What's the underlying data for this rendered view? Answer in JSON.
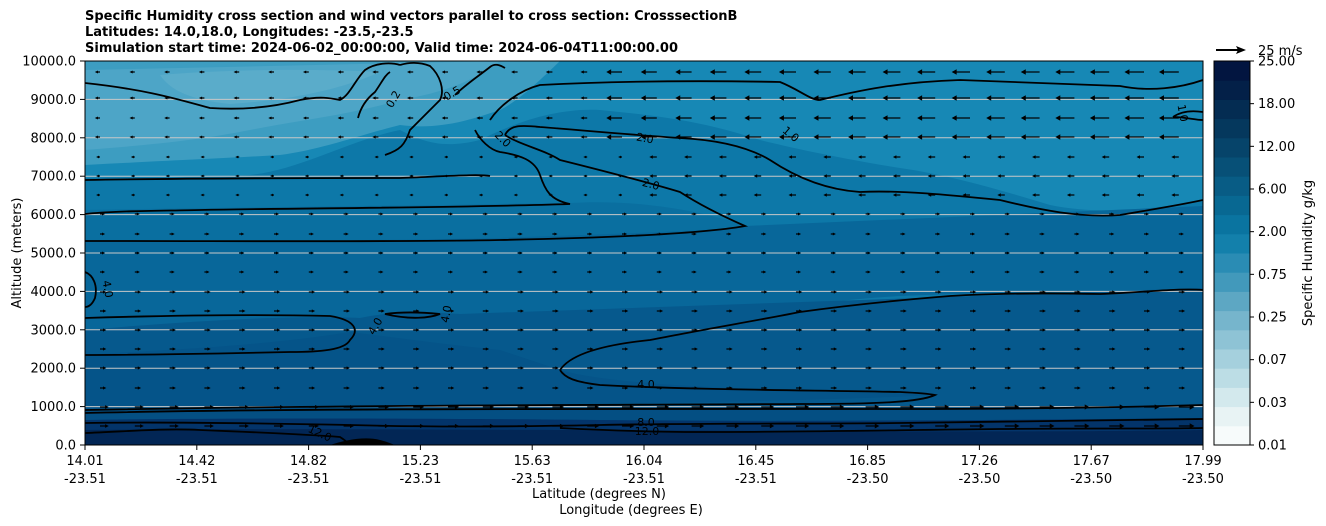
{
  "chart_data": {
    "type": "heatmap",
    "title_lines": [
      "Specific Humidity cross section and wind vectors parallel to cross section: CrosssectionB",
      "Latitudes: 14.0,18.0, Longitudes: -23.5,-23.5",
      "Simulation start time: 2024-06-02_00:00:00, Valid time: 2024-06-04T11:00:00.00"
    ],
    "ylabel": "Altitude (meters)",
    "xlabel_lat": "Latitude (degrees N)",
    "xlabel_lon": "Longitude (degrees E)",
    "ylim": [
      0,
      10000
    ],
    "y_ticks": [
      "0.0",
      "1000.0",
      "2000.0",
      "3000.0",
      "4000.0",
      "5000.0",
      "6000.0",
      "7000.0",
      "8000.0",
      "9000.0",
      "10000.0"
    ],
    "x_ticks_lat": [
      "14.01",
      "14.42",
      "14.82",
      "15.23",
      "15.63",
      "16.04",
      "16.45",
      "16.85",
      "17.26",
      "17.67",
      "17.99"
    ],
    "x_ticks_lon": [
      "-23.51",
      "-23.51",
      "-23.51",
      "-23.51",
      "-23.51",
      "-23.51",
      "-23.51",
      "-23.50",
      "-23.50",
      "-23.50",
      "-23.50"
    ],
    "colorbar_label": "Specific Humidity g/kg",
    "colorbar_ticks": [
      "0.01",
      "0.03",
      "0.07",
      "0.25",
      "0.75",
      "2.00",
      "6.00",
      "12.00",
      "18.00",
      "25.00"
    ],
    "vector_key": "25 m/s",
    "contour_labels": [
      "0.2",
      "0.5",
      "1.0",
      "1.0",
      "2.0",
      "2.0",
      "2.0",
      "4.0",
      "4.0",
      "4.0",
      "4.0",
      "8.0",
      "12.0",
      "12.0"
    ],
    "humidity_layers": [
      {
        "altitude_m": 500,
        "value_g_kg": 12.0
      },
      {
        "altitude_m": 2500,
        "value_g_kg": 4.0
      },
      {
        "altitude_m": 5000,
        "value_g_kg": 2.0
      },
      {
        "altitude_m": 7500,
        "value_g_kg": 0.75
      },
      {
        "altitude_m": 9000,
        "value_g_kg": 0.25
      }
    ],
    "colors": [
      "#f7fbfb",
      "#e8f3f4",
      "#d3e9ed",
      "#bcdde5",
      "#a5d0dd",
      "#8ec3d5",
      "#76b5cc",
      "#5da7c3",
      "#4299bb",
      "#2a8cb4",
      "#1380ab",
      "#0a74a0",
      "#086892",
      "#085c85",
      "#075077",
      "#06446a",
      "#05385d",
      "#042c52",
      "#032048",
      "#021540"
    ]
  }
}
